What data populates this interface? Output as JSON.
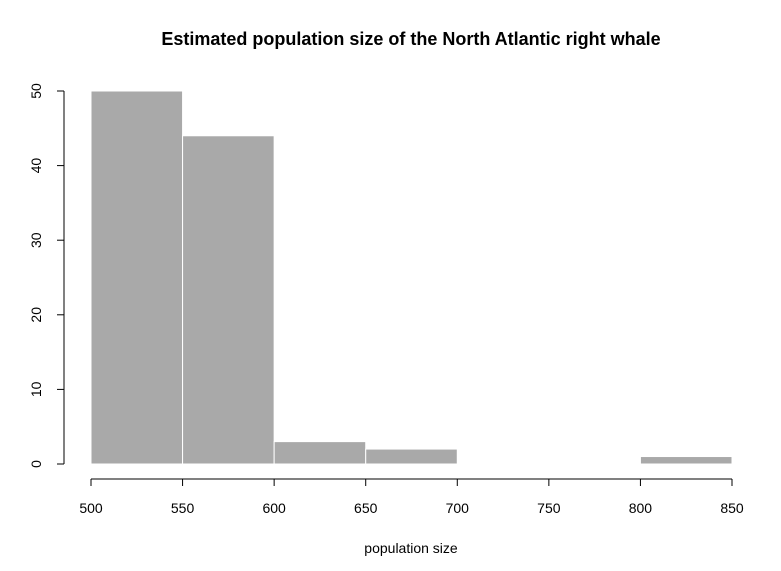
{
  "chart_data": {
    "type": "bar",
    "title": "Estimated population size of the North Atlantic right whale",
    "xlabel": "population size",
    "ylabel": "",
    "bins": [
      {
        "start": 500,
        "end": 550,
        "count": 50
      },
      {
        "start": 550,
        "end": 600,
        "count": 44
      },
      {
        "start": 600,
        "end": 650,
        "count": 3
      },
      {
        "start": 650,
        "end": 700,
        "count": 2
      },
      {
        "start": 700,
        "end": 750,
        "count": 0
      },
      {
        "start": 750,
        "end": 800,
        "count": 0
      },
      {
        "start": 800,
        "end": 850,
        "count": 1
      }
    ],
    "xlim": [
      500,
      850
    ],
    "ylim": [
      0,
      50
    ],
    "x_ticks": [
      "500",
      "550",
      "600",
      "650",
      "700",
      "750",
      "800",
      "850"
    ],
    "y_ticks": [
      "0",
      "10",
      "20",
      "30",
      "40",
      "50"
    ],
    "grid": false,
    "colors": {
      "bar_fill": "#a9a9a9",
      "bar_border": "#ffffff",
      "axis": "#000000"
    }
  }
}
